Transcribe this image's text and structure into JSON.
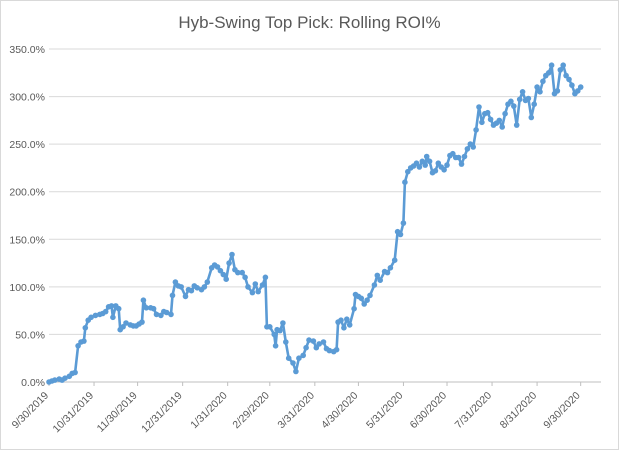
{
  "chart_data": {
    "type": "line",
    "title": "Hyb-Swing Top Pick: Rolling ROI%",
    "xlabel": "",
    "ylabel": "",
    "ylim": [
      0,
      350
    ],
    "y_ticks": [
      "0.0%",
      "50.0%",
      "100.0%",
      "150.0%",
      "200.0%",
      "250.0%",
      "300.0%",
      "350.0%"
    ],
    "y_tick_values": [
      0,
      50,
      100,
      150,
      200,
      250,
      300,
      350
    ],
    "x_tick_labels": [
      "9/30/2019",
      "10/31/2019",
      "11/30/2019",
      "12/31/2019",
      "1/31/2020",
      "2/29/2020",
      "3/31/2020",
      "4/30/2020",
      "5/31/2020",
      "6/30/2020",
      "7/31/2020",
      "8/31/2020",
      "9/30/2020"
    ],
    "grid": true,
    "legend": "none",
    "line_color": "#5b9bd5",
    "series": [
      {
        "values": [
          [
            "2019-09-30",
            0
          ],
          [
            "2019-10-02",
            1
          ],
          [
            "2019-10-04",
            2
          ],
          [
            "2019-10-07",
            3
          ],
          [
            "2019-10-09",
            2
          ],
          [
            "2019-10-11",
            4
          ],
          [
            "2019-10-14",
            6
          ],
          [
            "2019-10-16",
            9
          ],
          [
            "2019-10-18",
            10
          ],
          [
            "2019-10-20",
            38
          ],
          [
            "2019-10-22",
            42
          ],
          [
            "2019-10-24",
            43
          ],
          [
            "2019-10-25",
            57
          ],
          [
            "2019-10-27",
            65
          ],
          [
            "2019-10-29",
            68
          ],
          [
            "2019-11-01",
            70
          ],
          [
            "2019-11-04",
            71
          ],
          [
            "2019-11-06",
            72
          ],
          [
            "2019-11-08",
            74
          ],
          [
            "2019-11-10",
            79
          ],
          [
            "2019-11-12",
            80
          ],
          [
            "2019-11-13",
            68
          ],
          [
            "2019-11-15",
            80
          ],
          [
            "2019-11-17",
            77
          ],
          [
            "2019-11-18",
            55
          ],
          [
            "2019-11-20",
            58
          ],
          [
            "2019-11-22",
            62
          ],
          [
            "2019-11-25",
            60
          ],
          [
            "2019-11-27",
            59
          ],
          [
            "2019-11-29",
            59
          ],
          [
            "2019-12-01",
            61
          ],
          [
            "2019-12-03",
            63
          ],
          [
            "2019-12-04",
            86
          ],
          [
            "2019-12-06",
            78
          ],
          [
            "2019-12-09",
            78
          ],
          [
            "2019-12-11",
            77
          ],
          [
            "2019-12-13",
            71
          ],
          [
            "2019-12-16",
            70
          ],
          [
            "2019-12-18",
            74
          ],
          [
            "2019-12-20",
            73
          ],
          [
            "2019-12-23",
            71
          ],
          [
            "2019-12-24",
            91
          ],
          [
            "2019-12-26",
            105
          ],
          [
            "2019-12-28",
            101
          ],
          [
            "2019-12-30",
            100
          ],
          [
            "2020-01-02",
            90
          ],
          [
            "2020-01-04",
            97
          ],
          [
            "2020-01-06",
            96
          ],
          [
            "2020-01-08",
            101
          ],
          [
            "2020-01-10",
            99
          ],
          [
            "2020-01-13",
            97
          ],
          [
            "2020-01-15",
            100
          ],
          [
            "2020-01-17",
            105
          ],
          [
            "2020-01-20",
            120
          ],
          [
            "2020-01-22",
            123
          ],
          [
            "2020-01-24",
            121
          ],
          [
            "2020-01-26",
            117
          ],
          [
            "2020-01-28",
            113
          ],
          [
            "2020-01-30",
            108
          ],
          [
            "2020-02-01",
            125
          ],
          [
            "2020-02-03",
            134
          ],
          [
            "2020-02-05",
            118
          ],
          [
            "2020-02-07",
            115
          ],
          [
            "2020-02-10",
            115
          ],
          [
            "2020-02-12",
            110
          ],
          [
            "2020-02-14",
            100
          ],
          [
            "2020-02-17",
            94
          ],
          [
            "2020-02-19",
            103
          ],
          [
            "2020-02-21",
            95
          ],
          [
            "2020-02-24",
            102
          ],
          [
            "2020-02-26",
            110
          ],
          [
            "2020-02-27",
            58
          ],
          [
            "2020-02-29",
            58
          ],
          [
            "2020-03-03",
            50
          ],
          [
            "2020-03-04",
            38
          ],
          [
            "2020-03-05",
            55
          ],
          [
            "2020-03-07",
            54
          ],
          [
            "2020-03-09",
            62
          ],
          [
            "2020-03-11",
            42
          ],
          [
            "2020-03-13",
            25
          ],
          [
            "2020-03-16",
            20
          ],
          [
            "2020-03-18",
            11
          ],
          [
            "2020-03-20",
            25
          ],
          [
            "2020-03-23",
            28
          ],
          [
            "2020-03-25",
            36
          ],
          [
            "2020-03-27",
            44
          ],
          [
            "2020-03-30",
            43
          ],
          [
            "2020-04-01",
            36
          ],
          [
            "2020-04-03",
            40
          ],
          [
            "2020-04-06",
            42
          ],
          [
            "2020-04-08",
            35
          ],
          [
            "2020-04-10",
            33
          ],
          [
            "2020-04-13",
            32
          ],
          [
            "2020-04-15",
            34
          ],
          [
            "2020-04-16",
            63
          ],
          [
            "2020-04-18",
            65
          ],
          [
            "2020-04-20",
            57
          ],
          [
            "2020-04-22",
            66
          ],
          [
            "2020-04-24",
            60
          ],
          [
            "2020-04-27",
            77
          ],
          [
            "2020-04-28",
            92
          ],
          [
            "2020-04-30",
            90
          ],
          [
            "2020-05-02",
            88
          ],
          [
            "2020-05-04",
            82
          ],
          [
            "2020-05-06",
            86
          ],
          [
            "2020-05-08",
            91
          ],
          [
            "2020-05-11",
            102
          ],
          [
            "2020-05-13",
            112
          ],
          [
            "2020-05-15",
            107
          ],
          [
            "2020-05-18",
            116
          ],
          [
            "2020-05-20",
            115
          ],
          [
            "2020-05-22",
            120
          ],
          [
            "2020-05-25",
            128
          ],
          [
            "2020-05-27",
            158
          ],
          [
            "2020-05-29",
            155
          ],
          [
            "2020-05-31",
            167
          ],
          [
            "2020-06-01",
            210
          ],
          [
            "2020-06-03",
            221
          ],
          [
            "2020-06-05",
            225
          ],
          [
            "2020-06-07",
            227
          ],
          [
            "2020-06-09",
            230
          ],
          [
            "2020-06-11",
            226
          ],
          [
            "2020-06-13",
            232
          ],
          [
            "2020-06-15",
            228
          ],
          [
            "2020-06-16",
            237
          ],
          [
            "2020-06-18",
            232
          ],
          [
            "2020-06-20",
            220
          ],
          [
            "2020-06-22",
            222
          ],
          [
            "2020-06-24",
            230
          ],
          [
            "2020-06-26",
            226
          ],
          [
            "2020-06-28",
            223
          ],
          [
            "2020-06-30",
            228
          ],
          [
            "2020-07-02",
            238
          ],
          [
            "2020-07-04",
            240
          ],
          [
            "2020-07-06",
            236
          ],
          [
            "2020-07-08",
            236
          ],
          [
            "2020-07-10",
            229
          ],
          [
            "2020-07-12",
            237
          ],
          [
            "2020-07-14",
            245
          ],
          [
            "2020-07-16",
            250
          ],
          [
            "2020-07-18",
            247
          ],
          [
            "2020-07-20",
            265
          ],
          [
            "2020-07-22",
            289
          ],
          [
            "2020-07-24",
            273
          ],
          [
            "2020-07-26",
            282
          ],
          [
            "2020-07-28",
            283
          ],
          [
            "2020-07-30",
            276
          ],
          [
            "2020-08-01",
            270
          ],
          [
            "2020-08-03",
            272
          ],
          [
            "2020-08-05",
            275
          ],
          [
            "2020-08-07",
            268
          ],
          [
            "2020-08-09",
            282
          ],
          [
            "2020-08-11",
            292
          ],
          [
            "2020-08-13",
            295
          ],
          [
            "2020-08-15",
            290
          ],
          [
            "2020-08-17",
            270
          ],
          [
            "2020-08-19",
            297
          ],
          [
            "2020-08-21",
            305
          ],
          [
            "2020-08-23",
            296
          ],
          [
            "2020-08-25",
            298
          ],
          [
            "2020-08-27",
            278
          ],
          [
            "2020-08-29",
            292
          ],
          [
            "2020-08-31",
            310
          ],
          [
            "2020-09-02",
            305
          ],
          [
            "2020-09-04",
            316
          ],
          [
            "2020-09-06",
            322
          ],
          [
            "2020-09-08",
            325
          ],
          [
            "2020-09-10",
            333
          ],
          [
            "2020-09-12",
            303
          ],
          [
            "2020-09-14",
            306
          ],
          [
            "2020-09-16",
            328
          ],
          [
            "2020-09-18",
            333
          ],
          [
            "2020-09-20",
            322
          ],
          [
            "2020-09-22",
            318
          ],
          [
            "2020-09-24",
            312
          ],
          [
            "2020-09-26",
            303
          ],
          [
            "2020-09-28",
            306
          ],
          [
            "2020-09-30",
            310
          ]
        ]
      }
    ]
  }
}
